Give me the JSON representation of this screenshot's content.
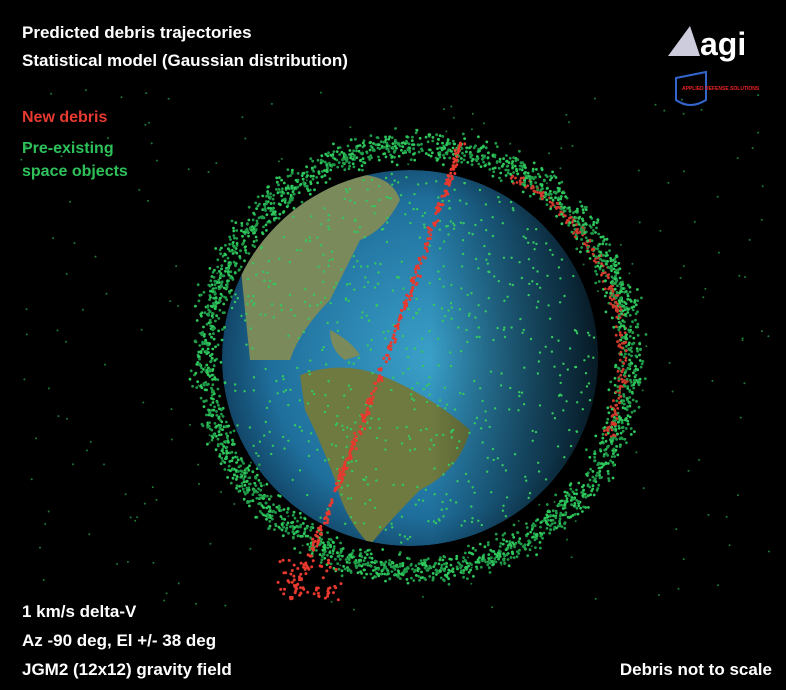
{
  "header": {
    "title": "Predicted debris trajectories",
    "subtitle": "Statistical model (Gaussian distribution)"
  },
  "logo": {
    "brand": "agi",
    "tagline": "APPLIED DEFENSE SOLUTIONS"
  },
  "legend": {
    "new": "New debris",
    "existing_line1": "Pre-existing",
    "existing_line2": "space objects"
  },
  "notes": {
    "line1": "1 km/s delta-V",
    "line2": "Az -90 deg, El +/- 38 deg",
    "line3": "JGM2 (12x12) gravity field",
    "scale": "Debris not to scale"
  }
}
